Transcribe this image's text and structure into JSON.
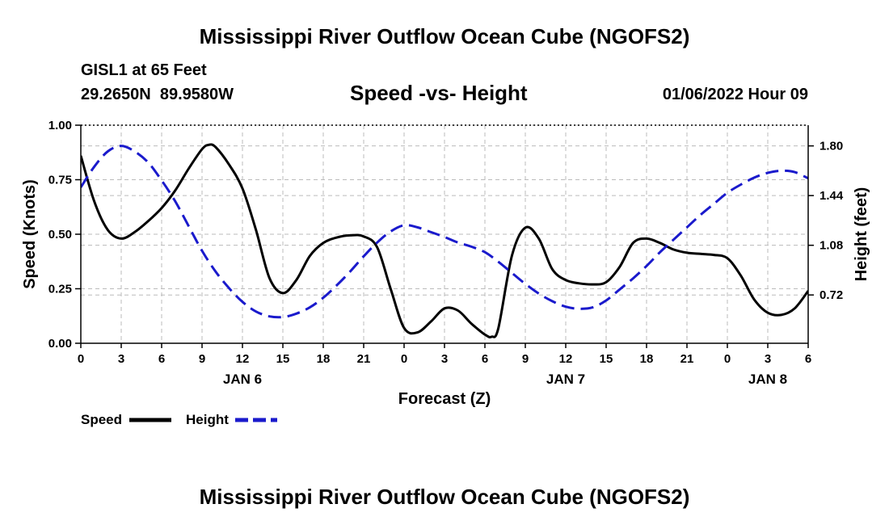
{
  "page": {
    "title": "Mississippi River Outflow Ocean Cube (NGOFS2)",
    "station": "GISL1 at 65 Feet",
    "coords": "29.2650N  89.9580W",
    "subtitle": "Speed -vs- Height",
    "datetime": "01/06/2022 Hour 09",
    "footer_title": "Mississippi River Outflow Ocean Cube (NGOFS2)"
  },
  "chart_data": {
    "type": "line",
    "title": "Speed -vs- Height",
    "xlabel": "Forecast (Z)",
    "ylabel": "Speed (Knots)",
    "ylabel_right": "Height (feet)",
    "x_range": [
      0,
      54
    ],
    "ylim": [
      0,
      1.0
    ],
    "ylim_right": [
      0.37,
      1.95
    ],
    "grid": true,
    "legend_position": "bottom-left",
    "x_ticks": [
      0,
      3,
      6,
      9,
      12,
      15,
      18,
      21,
      24,
      27,
      30,
      33,
      36,
      39,
      42,
      45,
      48,
      51,
      54
    ],
    "x_tick_labels": [
      "0",
      "3",
      "6",
      "9",
      "12",
      "15",
      "18",
      "21",
      "0",
      "3",
      "6",
      "9",
      "12",
      "15",
      "18",
      "21",
      "0",
      "3",
      "6"
    ],
    "date_labels": [
      {
        "x": 12,
        "label": "JAN 6"
      },
      {
        "x": 36,
        "label": "JAN 7"
      },
      {
        "x": 51,
        "label": "JAN 8"
      }
    ],
    "y_ticks": [
      0.0,
      0.25,
      0.5,
      0.75,
      1.0
    ],
    "y_tick_labels": [
      "0.00",
      "0.25",
      "0.50",
      "0.75",
      "1.00"
    ],
    "y_ticks_right": [
      0.72,
      1.08,
      1.44,
      1.8
    ],
    "y_tick_labels_right": [
      "0.72",
      "1.08",
      "1.44",
      "1.80"
    ],
    "series": [
      {
        "name": "Speed",
        "axis": "left",
        "color": "#000000",
        "dashed": false,
        "x": [
          0,
          1,
          2,
          3,
          4,
          5,
          6,
          7,
          8,
          9,
          9.5,
          10,
          11,
          12,
          13,
          14,
          15,
          16,
          17,
          18,
          19,
          20,
          21,
          22,
          23,
          24,
          25,
          26,
          27,
          28,
          29,
          30,
          30.5,
          31,
          32,
          33,
          34,
          35,
          36,
          37,
          38,
          39,
          40,
          41,
          42,
          43,
          44,
          45,
          46,
          47,
          48,
          49,
          50,
          51,
          52,
          53,
          54
        ],
        "values": [
          0.86,
          0.65,
          0.52,
          0.48,
          0.51,
          0.56,
          0.62,
          0.7,
          0.8,
          0.89,
          0.91,
          0.9,
          0.82,
          0.71,
          0.52,
          0.3,
          0.23,
          0.29,
          0.4,
          0.46,
          0.485,
          0.495,
          0.49,
          0.44,
          0.25,
          0.07,
          0.05,
          0.1,
          0.16,
          0.15,
          0.09,
          0.04,
          0.03,
          0.07,
          0.4,
          0.53,
          0.48,
          0.34,
          0.29,
          0.275,
          0.27,
          0.28,
          0.35,
          0.46,
          0.48,
          0.46,
          0.43,
          0.415,
          0.41,
          0.405,
          0.39,
          0.31,
          0.2,
          0.14,
          0.13,
          0.16,
          0.24
        ]
      },
      {
        "name": "Height",
        "axis": "right",
        "color": "#1a1acc",
        "dashed": true,
        "x": [
          0,
          1,
          2,
          3,
          4,
          5,
          6,
          7,
          8,
          9,
          10,
          11,
          12,
          13,
          14,
          15,
          16,
          17,
          18,
          19,
          20,
          21,
          22,
          23,
          24,
          25,
          26,
          27,
          28,
          29,
          30,
          31,
          32,
          33,
          34,
          35,
          36,
          37,
          38,
          39,
          40,
          41,
          42,
          43,
          44,
          45,
          46,
          47,
          48,
          49,
          50,
          51,
          52,
          53,
          54
        ],
        "values": [
          1.5,
          1.65,
          1.76,
          1.8,
          1.76,
          1.68,
          1.55,
          1.4,
          1.22,
          1.04,
          0.89,
          0.77,
          0.67,
          0.6,
          0.565,
          0.56,
          0.585,
          0.63,
          0.7,
          0.79,
          0.89,
          1.0,
          1.1,
          1.18,
          1.225,
          1.21,
          1.175,
          1.14,
          1.1,
          1.07,
          1.03,
          0.96,
          0.88,
          0.8,
          0.73,
          0.675,
          0.635,
          0.62,
          0.63,
          0.68,
          0.76,
          0.84,
          0.93,
          1.03,
          1.12,
          1.21,
          1.3,
          1.38,
          1.46,
          1.52,
          1.57,
          1.605,
          1.62,
          1.61,
          1.565
        ]
      }
    ]
  },
  "legend": [
    {
      "label": "Speed",
      "color": "#000000",
      "dashed": false
    },
    {
      "label": "Height",
      "color": "#1a1acc",
      "dashed": true
    }
  ]
}
